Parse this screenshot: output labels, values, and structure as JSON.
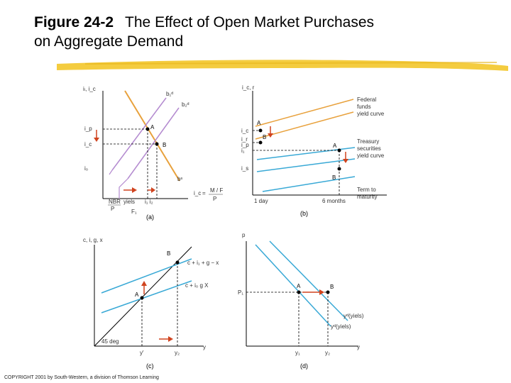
{
  "title": {
    "number": "Figure 24-2",
    "line1": "The Effect of Open Market Purchases",
    "line2": "on Aggregate Demand"
  },
  "colors": {
    "orange": "#e8a13c",
    "purple": "#b48bd0",
    "blue": "#39a9d6",
    "red": "#d0431e",
    "highlight": "#f3c62a"
  },
  "panels": {
    "a": {
      "caption": "(a)",
      "y_axis": "iₗ, i_c",
      "labels": {
        "b1": "b₁ᵈ",
        "b2": "b₂ᵈ",
        "A": "A",
        "B": "B",
        "bs": "bˢ",
        "ip": "i_p",
        "ic": "i_c",
        "i0": "i₀",
        "nbr": "NBR",
        "p": "P",
        "yiels": "yiels",
        "rhs": "i₁ i₂",
        "F1": "F₁",
        "eq_lhs": "i_c",
        "eq_mid": "=",
        "eq_num": "M / F",
        "eq_den": "P"
      }
    },
    "b": {
      "caption": "(b)",
      "y_axis": "i_c, r",
      "labels": {
        "A": "A",
        "B": "B",
        "A2": "A",
        "B2": "B",
        "ic": "i_c",
        "ir": "i_r",
        "ip": "i_p",
        "i1": "i₁",
        "i2": "i_s",
        "oneday": "1 day",
        "sixmonths": "6 months",
        "fed_curve": [
          "Federal",
          "funds",
          "yield curve"
        ],
        "treasury_curve": [
          "Treasury",
          "securities",
          "yield curve"
        ],
        "term": [
          "Term to",
          "maturity"
        ]
      }
    },
    "c": {
      "caption": "(c)",
      "y_axis": "c, i, g, x",
      "labels": {
        "B": "B",
        "A": "A",
        "upper": "c + i₁ + g − x",
        "lower": "c + i₀   g   X",
        "deg": "45 deg",
        "y1": "y'",
        "y2": "y₂",
        "yaxis_end": "y"
      }
    },
    "d": {
      "caption": "(d)",
      "y_axis": "p",
      "labels": {
        "A": "A",
        "B": "B",
        "P1": "P₁",
        "ad2": "yᵈ(yiels)",
        "ad1": "yᵈ(yiels)",
        "y1": "y₁",
        "y2": "y₂",
        "yaxis_end": "y"
      }
    }
  },
  "copyright": "COPYRIGHT 2001 by South-Western, a division of Thomson Learning"
}
